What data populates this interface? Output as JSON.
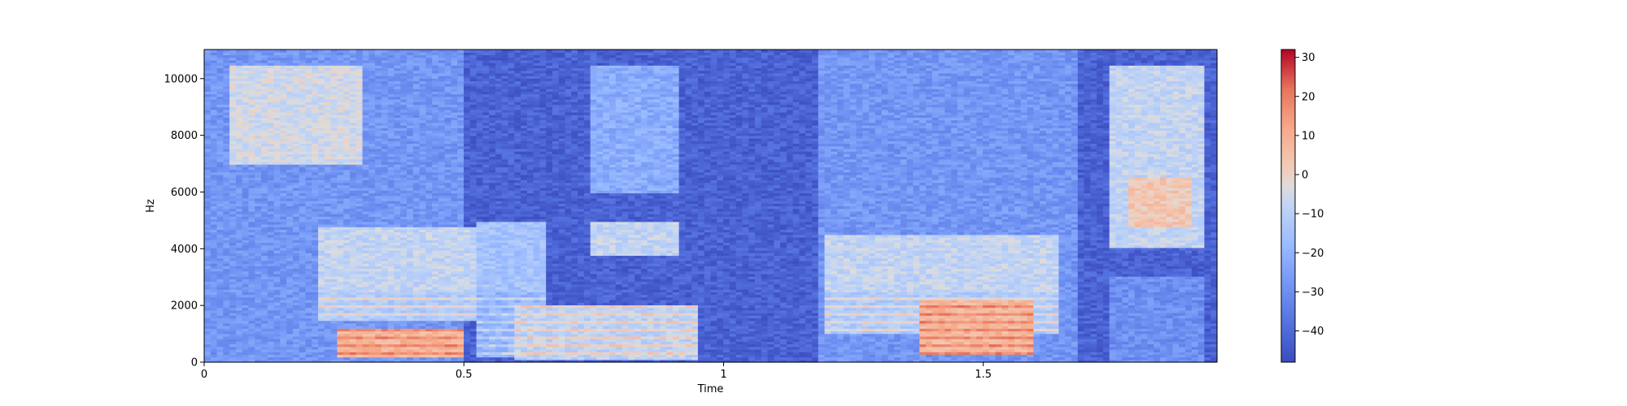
{
  "chart_data": {
    "type": "heatmap",
    "title": "",
    "xlabel": "Time",
    "ylabel": "Hz",
    "xlim": [
      0,
      1.95
    ],
    "ylim": [
      0,
      11025
    ],
    "x_ticks": [
      {
        "value": 0,
        "label": "0"
      },
      {
        "value": 0.5,
        "label": "0.5"
      },
      {
        "value": 1,
        "label": "1"
      },
      {
        "value": 1.5,
        "label": "1.5"
      }
    ],
    "y_ticks": [
      {
        "value": 0,
        "label": "0"
      },
      {
        "value": 2000,
        "label": "2000"
      },
      {
        "value": 4000,
        "label": "4000"
      },
      {
        "value": 6000,
        "label": "6000"
      },
      {
        "value": 8000,
        "label": "8000"
      },
      {
        "value": 10000,
        "label": "10000"
      }
    ],
    "colormap": "coolwarm",
    "colorbar": {
      "range": [
        -48,
        32
      ],
      "ticks": [
        {
          "value": 30,
          "label": "30"
        },
        {
          "value": 20,
          "label": "20"
        },
        {
          "value": 10,
          "label": "10"
        },
        {
          "value": 0,
          "label": "0"
        },
        {
          "value": -10,
          "label": "−10"
        },
        {
          "value": -20,
          "label": "−20"
        },
        {
          "value": -30,
          "label": "−30"
        },
        {
          "value": -40,
          "label": "−40"
        }
      ]
    },
    "grid": false,
    "colors": {
      "low": "#3b4cc0",
      "mid": "#dddddd",
      "high": "#b40426"
    },
    "energy_regions": [
      {
        "t": [
          0.0,
          0.5
        ],
        "f": [
          0,
          11025
        ],
        "level": -28
      },
      {
        "t": [
          0.05,
          0.3
        ],
        "f": [
          7000,
          10500
        ],
        "level": -5
      },
      {
        "t": [
          0.22,
          0.52
        ],
        "f": [
          1500,
          4800
        ],
        "level": -8
      },
      {
        "t": [
          0.25,
          0.5
        ],
        "f": [
          200,
          1200
        ],
        "level": 12
      },
      {
        "t": [
          0.52,
          0.66
        ],
        "f": [
          200,
          5000
        ],
        "level": -15
      },
      {
        "t": [
          0.74,
          0.92
        ],
        "f": [
          6000,
          10500
        ],
        "level": -22
      },
      {
        "t": [
          0.74,
          0.92
        ],
        "f": [
          3800,
          5000
        ],
        "level": -8
      },
      {
        "t": [
          0.6,
          0.95
        ],
        "f": [
          100,
          2000
        ],
        "level": -5
      },
      {
        "t": [
          0.95,
          1.18
        ],
        "f": [
          0,
          11025
        ],
        "level": -44
      },
      {
        "t": [
          1.18,
          1.68
        ],
        "f": [
          0,
          11025
        ],
        "level": -28
      },
      {
        "t": [
          1.2,
          1.65
        ],
        "f": [
          1000,
          4500
        ],
        "level": -8
      },
      {
        "t": [
          1.38,
          1.6
        ],
        "f": [
          300,
          2200
        ],
        "level": 12
      },
      {
        "t": [
          1.68,
          1.74
        ],
        "f": [
          0,
          11025
        ],
        "level": -44
      },
      {
        "t": [
          1.74,
          1.93
        ],
        "f": [
          4000,
          10500
        ],
        "level": -8
      },
      {
        "t": [
          1.78,
          1.9
        ],
        "f": [
          4800,
          6500
        ],
        "level": 3
      },
      {
        "t": [
          1.74,
          1.93
        ],
        "f": [
          0,
          3000
        ],
        "level": -30
      }
    ]
  }
}
